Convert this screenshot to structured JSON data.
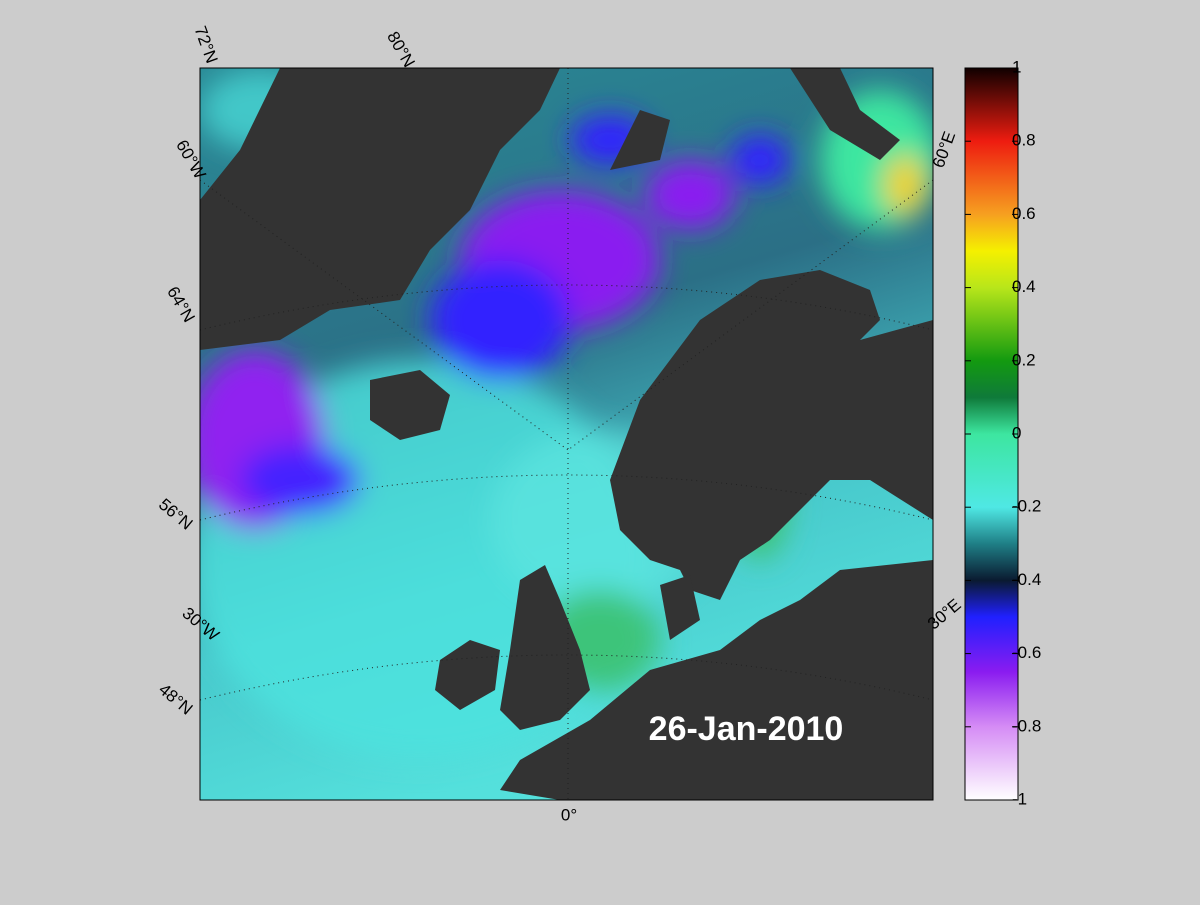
{
  "map": {
    "date_label": "26-Jan-2010",
    "grid_labels": [
      "72°N",
      "80°N",
      "60°W",
      "64°N",
      "56°N",
      "30°W",
      "48°N",
      "0°",
      "60°E",
      "30°E"
    ],
    "colorbar": {
      "range": [
        -1,
        1
      ],
      "ticks": [
        1,
        0.8,
        0.6,
        0.4,
        0.2,
        0,
        -0.2,
        -0.4,
        -0.6,
        -0.8,
        -1
      ],
      "colormap": [
        {
          "value": -1,
          "color": "#ffffff"
        },
        {
          "value": -0.8,
          "color": "#d58cf5"
        },
        {
          "value": -0.65,
          "color": "#8a1cf0"
        },
        {
          "value": -0.5,
          "color": "#2020ff"
        },
        {
          "value": -0.4,
          "color": "#0a1a30"
        },
        {
          "value": -0.3,
          "color": "#1f7f86"
        },
        {
          "value": -0.2,
          "color": "#4fe8e4"
        },
        {
          "value": 0,
          "color": "#3de6a0"
        },
        {
          "value": 0.1,
          "color": "#0f7a3a"
        },
        {
          "value": 0.2,
          "color": "#139a10"
        },
        {
          "value": 0.4,
          "color": "#b8e61a"
        },
        {
          "value": 0.5,
          "color": "#f5f000"
        },
        {
          "value": 0.6,
          "color": "#f6a020"
        },
        {
          "value": 0.8,
          "color": "#ee1c10"
        },
        {
          "value": 1,
          "color": "#100000"
        }
      ]
    }
  }
}
